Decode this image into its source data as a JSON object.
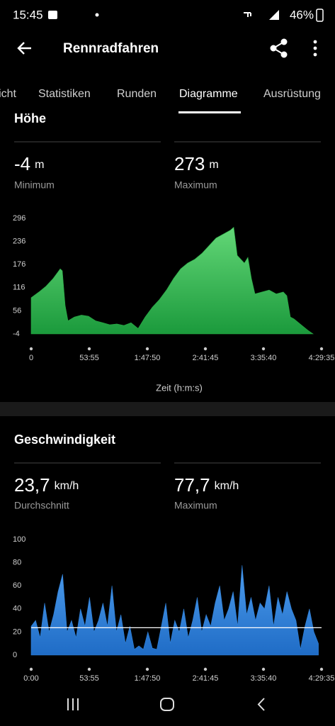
{
  "status_bar": {
    "time": "15:45",
    "battery": "46%"
  },
  "header": {
    "title": "Rennradfahren"
  },
  "tabs": [
    "Übersicht",
    "Statistiken",
    "Runden",
    "Diagramme",
    "Ausrüstung"
  ],
  "sections": [
    {
      "title": "Höhe",
      "stats": [
        {
          "value": -4,
          "unit": "m",
          "label": "Minimum"
        },
        {
          "value": 273,
          "unit": "m",
          "label": "Maximum"
        }
      ]
    },
    {
      "title": "Geschwindigkeit",
      "stats": [
        {
          "value": {
            "value": 23.7,
            "label": "23,7"
          },
          "unit": "km/h",
          "label": "Durchschnitt"
        },
        {
          "value": {
            "value": 77.7,
            "label": "77,7"
          },
          "unit": "km/h",
          "label": "Maximum"
        }
      ]
    }
  ],
  "chart_data": [
    {
      "type": "area",
      "x_label": "Zeit (h:m:s)",
      "color": "#2aa845",
      "x": [
        0,
        434,
        829,
        1223,
        1617,
        1736,
        1894,
        2051,
        2406,
        2801,
        3195,
        3590,
        3984,
        4379,
        4773,
        5168,
        5562,
        5957,
        6351,
        6746,
        7140,
        7535,
        7929,
        8324,
        8718,
        9113,
        9507,
        9902,
        10296,
        10691,
        11085,
        11283,
        11480,
        11677,
        11875,
        12072,
        12269,
        12466,
        12861,
        13255,
        13650,
        14044,
        14241,
        14439,
        14636,
        15031,
        15425,
        15701
      ],
      "values": [
        90,
        105,
        120,
        140,
        165,
        160,
        70,
        30,
        40,
        45,
        42,
        30,
        25,
        20,
        22,
        18,
        25,
        10,
        40,
        65,
        85,
        110,
        140,
        165,
        180,
        190,
        205,
        225,
        245,
        255,
        265,
        273,
        200,
        190,
        180,
        195,
        140,
        100,
        105,
        110,
        100,
        105,
        95,
        40,
        35,
        20,
        5,
        -4
      ],
      "xlim": [
        0,
        16175
      ],
      "xticks": [
        0,
        {
          "value": 3235,
          "label": "53:55"
        },
        {
          "value": 6470,
          "label": "1:47:50"
        },
        {
          "value": 9705,
          "label": "2:41:45"
        },
        {
          "value": 12940,
          "label": "3:35:40"
        },
        {
          "value": 16175,
          "label": "4:29:35"
        }
      ],
      "ylim": [
        -4,
        296
      ],
      "yticks": [
        -4,
        56,
        116,
        176,
        236,
        296
      ]
    },
    {
      "type": "area",
      "color": "#2f80d8",
      "x": [
        0,
        250,
        500,
        750,
        1000,
        1250,
        1500,
        1750,
        2000,
        2250,
        2500,
        2750,
        3000,
        3250,
        3500,
        3750,
        4000,
        4250,
        4500,
        4750,
        5000,
        5250,
        5500,
        5750,
        6000,
        6250,
        6500,
        6750,
        7000,
        7250,
        7500,
        7750,
        8000,
        8250,
        8500,
        8750,
        9000,
        9250,
        9500,
        9750,
        10000,
        10250,
        10500,
        10750,
        11000,
        11250,
        11500,
        11750,
        12000,
        12250,
        12500,
        12750,
        13000,
        13250,
        13500,
        13750,
        14000,
        14250,
        14500,
        14750,
        15000,
        15250,
        15500,
        15750,
        16000
      ],
      "values": [
        25,
        30,
        15,
        45,
        20,
        35,
        55,
        70,
        20,
        30,
        15,
        40,
        25,
        50,
        20,
        30,
        45,
        25,
        60,
        20,
        35,
        10,
        25,
        5,
        8,
        5,
        20,
        6,
        5,
        25,
        45,
        10,
        30,
        20,
        40,
        15,
        30,
        50,
        20,
        35,
        25,
        45,
        60,
        30,
        40,
        55,
        25,
        77.7,
        35,
        50,
        30,
        45,
        40,
        60,
        25,
        50,
        35,
        55,
        40,
        30,
        5,
        25,
        40,
        20,
        10
      ],
      "xlim": [
        0,
        16175
      ],
      "xticks": [
        {
          "value": 0,
          "label": "0:00"
        },
        {
          "value": 3235,
          "label": "53:55"
        },
        {
          "value": 6470,
          "label": "1:47:50"
        },
        {
          "value": 9705,
          "label": "2:41:45"
        },
        {
          "value": 12940,
          "label": "3:35:40"
        },
        {
          "value": 16175,
          "label": "4:29:35"
        }
      ],
      "ylim": [
        0,
        100
      ],
      "yticks": [
        0,
        20,
        40,
        60,
        80,
        100
      ]
    }
  ]
}
